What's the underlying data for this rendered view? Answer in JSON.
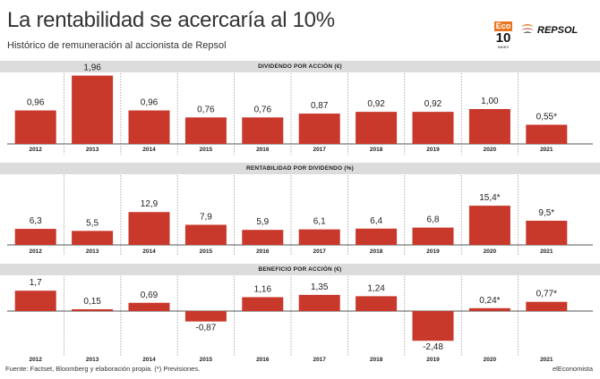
{
  "title": "La rentabilidad se acercaría al 10%",
  "subtitle": "Histórico de remuneración al accionista de Repsol",
  "logo": {
    "eco_top": "Eco",
    "eco_num": "10",
    "eco_sub": "INDEX",
    "repsol": "REPSOL"
  },
  "colors": {
    "bar": "#c8382b",
    "band": "#dcdcdc",
    "eco": "#e87722"
  },
  "chart_data": [
    {
      "type": "bar",
      "title": "DIVIDENDO POR ACCIÓN (€)",
      "categories": [
        "2012",
        "2013",
        "2014",
        "2015",
        "2016",
        "2017",
        "2018",
        "2019",
        "2020",
        "2021"
      ],
      "values": [
        0.96,
        1.96,
        0.96,
        0.76,
        0.76,
        0.87,
        0.92,
        0.92,
        1.0,
        0.55
      ],
      "labels": [
        "0,96",
        "1,96",
        "0,96",
        "0,76",
        "0,76",
        "0,87",
        "0,92",
        "0,92",
        "1,00",
        "0,55*"
      ]
    },
    {
      "type": "bar",
      "title": "RENTABILIDAD POR DIVIDENDO (%)",
      "categories": [
        "2012",
        "2013",
        "2014",
        "2015",
        "2016",
        "2017",
        "2018",
        "2019",
        "2020",
        "2021"
      ],
      "values": [
        6.3,
        5.5,
        12.9,
        7.9,
        5.9,
        6.1,
        6.4,
        6.8,
        15.4,
        9.5
      ],
      "labels": [
        "6,3",
        "5,5",
        "12,9",
        "7,9",
        "5,9",
        "6,1",
        "6,4",
        "6,8",
        "15,4*",
        "9,5*"
      ]
    },
    {
      "type": "bar",
      "title": "BENEFICIO POR ACCIÓN (€)",
      "categories": [
        "2012",
        "2013",
        "2014",
        "2015",
        "2016",
        "2017",
        "2018",
        "2019",
        "2020",
        "2021"
      ],
      "values": [
        1.7,
        0.15,
        0.69,
        -0.87,
        1.16,
        1.35,
        1.24,
        -2.48,
        0.24,
        0.77
      ],
      "labels": [
        "1,7",
        "0,15",
        "0,69",
        "-0,87",
        "1,16",
        "1,35",
        "1,24",
        "-2,48",
        "0,24*",
        "0,77*"
      ]
    }
  ],
  "footer": {
    "source": "Fuente: Factset, Bloomberg y elaboración propia. (*) Previsiones.",
    "brand": "elEconomista"
  }
}
